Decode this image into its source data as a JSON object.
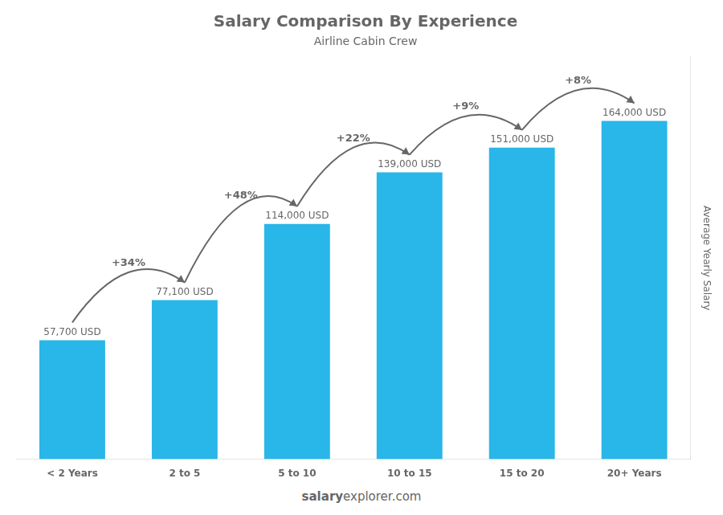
{
  "chart_data": {
    "type": "bar",
    "title": "Salary Comparison By Experience",
    "subtitle": "Airline Cabin Crew",
    "ylabel": "Average Yearly Salary",
    "categories": [
      "< 2 Years",
      "2 to 5",
      "5 to 10",
      "10 to 15",
      "15 to 20",
      "20+ Years"
    ],
    "values": [
      57700,
      77100,
      114000,
      139000,
      151000,
      164000
    ],
    "value_labels": [
      "57,700 USD",
      "77,100 USD",
      "114,000 USD",
      "139,000 USD",
      "151,000 USD",
      "164,000 USD"
    ],
    "data_labels": true,
    "annotations": [
      "+34%",
      "+48%",
      "+22%",
      "+9%",
      "+8%"
    ],
    "footer": [
      "salary",
      "explorer.com"
    ],
    "color": "#29b6e8",
    "ylim": [
      0,
      195000
    ],
    "grid": false,
    "tick_labels": "x"
  }
}
